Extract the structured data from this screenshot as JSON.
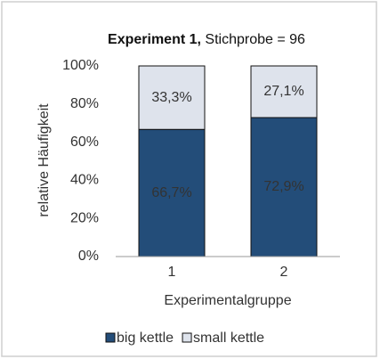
{
  "chart_data": {
    "type": "stacked_bar",
    "title": "Experiment 1,",
    "subtitle": "Stichprobe = 96",
    "xlabel": "Experimentalgruppe",
    "ylabel": "relative Häufigkeit",
    "categories": [
      "1",
      "2"
    ],
    "series": [
      {
        "name": "big kettle",
        "color": "#234d79",
        "values": [
          66.7,
          72.9
        ],
        "value_labels": [
          "66,7%",
          "72,9%"
        ]
      },
      {
        "name": "small kettle",
        "color": "#dee3ec",
        "values": [
          33.3,
          27.1
        ],
        "value_labels": [
          "33,3%",
          "27,1%"
        ]
      }
    ],
    "ylim": [
      0,
      100
    ],
    "yticks": [
      {
        "value": 0,
        "label": "0%"
      },
      {
        "value": 20,
        "label": "20%"
      },
      {
        "value": 40,
        "label": "40%"
      },
      {
        "value": 60,
        "label": "60%"
      },
      {
        "value": 80,
        "label": "80%"
      },
      {
        "value": 100,
        "label": "100%"
      }
    ],
    "grid": false,
    "legend": "bottom"
  }
}
